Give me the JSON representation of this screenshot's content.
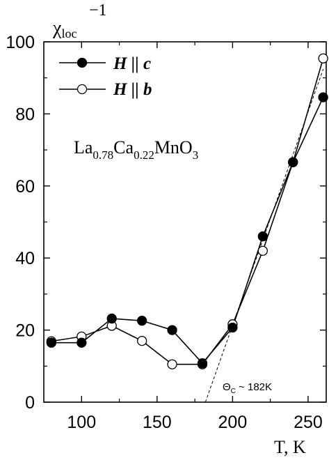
{
  "chart_data": {
    "type": "line",
    "ylabel": {
      "symbol": "χ",
      "subscript": "loc",
      "superscript": "−1"
    },
    "xlabel": "T, K",
    "xlim": [
      75,
      262
    ],
    "ylim": [
      0,
      100
    ],
    "xticks": [
      100,
      150,
      200,
      250
    ],
    "xticks_minor": [
      125,
      175,
      225
    ],
    "yticks": [
      0,
      20,
      40,
      60,
      80,
      100
    ],
    "yticks_minor": [
      10,
      30,
      50,
      70,
      90
    ],
    "grid": false,
    "legend_position": "top-left",
    "compound": {
      "parts": [
        {
          "text": "La",
          "sub": "0.78"
        },
        {
          "text": "Ca",
          "sub": "0.22"
        },
        {
          "text": "MnO",
          "sub": "3"
        }
      ]
    },
    "series": [
      {
        "name": "H || c",
        "marker": "filled-circle",
        "x": [
          80,
          100,
          120,
          140,
          160,
          180,
          200,
          220,
          240,
          260
        ],
        "y": [
          16.5,
          16.5,
          23.2,
          22.6,
          20.0,
          10.8,
          20.7,
          46.0,
          66.6,
          84.6
        ]
      },
      {
        "name": "H || b",
        "marker": "open-circle",
        "x": [
          80,
          100,
          120,
          140,
          160,
          180,
          200,
          220,
          240,
          260
        ],
        "y": [
          16.9,
          18.2,
          21.2,
          17.0,
          10.5,
          10.5,
          21.6,
          42.0,
          66.6,
          95.4
        ]
      }
    ],
    "fit_line": {
      "x": [
        182,
        260
      ],
      "y": [
        0,
        92.4
      ]
    },
    "annotation": {
      "symbol": "Θ",
      "subscript": "C",
      "text": " ~ 182K"
    }
  }
}
